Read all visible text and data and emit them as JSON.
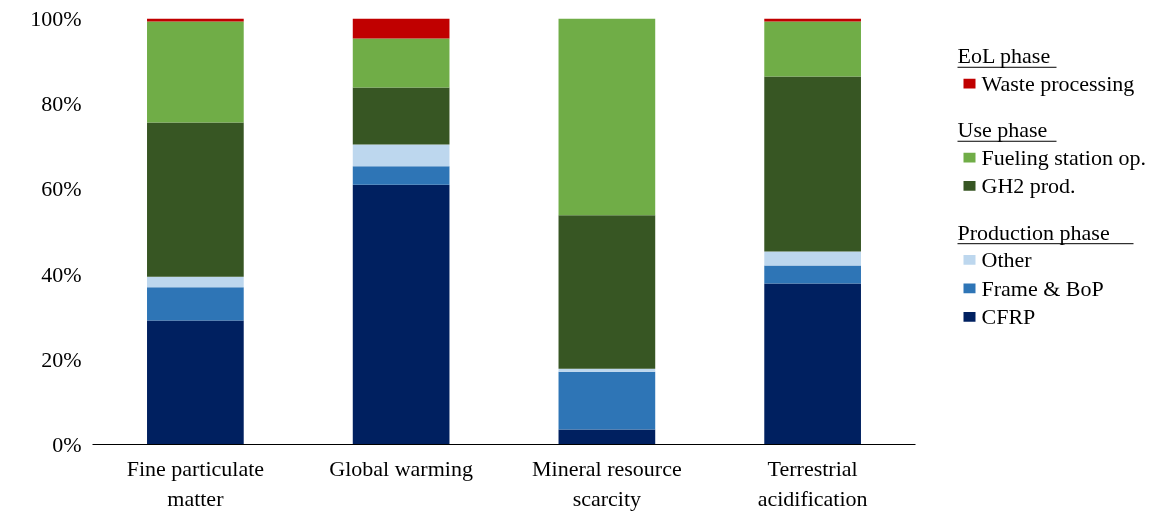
{
  "chart_data": {
    "type": "bar",
    "stacked": true,
    "categories": [
      "Fine particulate\nmatter",
      "Global warming",
      "Mineral resource\nscarcity",
      "Terrestrial\nacidification"
    ],
    "series": [
      {
        "name": "CFRP",
        "color": "#002060",
        "values": [
          29.1,
          61.0,
          3.5,
          37.8
        ]
      },
      {
        "name": "Frame & BoP",
        "color": "#2e75b6",
        "values": [
          7.8,
          4.3,
          13.6,
          4.2
        ]
      },
      {
        "name": "Other",
        "color": "#bdd7ee",
        "values": [
          2.5,
          5.1,
          0.7,
          3.3
        ]
      },
      {
        "name": "GH2 prod.",
        "color": "#375623",
        "values": [
          36.2,
          13.4,
          36.0,
          41.1
        ]
      },
      {
        "name": "Fueling station op.",
        "color": "#70ad47",
        "values": [
          23.7,
          11.5,
          46.2,
          12.9
        ]
      },
      {
        "name": "Waste processing",
        "color": "#c00000",
        "values": [
          0.7,
          4.7,
          0,
          0.7
        ]
      }
    ],
    "ylim": [
      0,
      100
    ],
    "yticks": [
      {
        "value": 0,
        "label": "0%"
      },
      {
        "value": 20,
        "label": "20%"
      },
      {
        "value": 40,
        "label": "40%"
      },
      {
        "value": 60,
        "label": "60%"
      },
      {
        "value": 80,
        "label": "80%"
      },
      {
        "value": 100,
        "label": "100%"
      }
    ],
    "grid": false,
    "legend": "right",
    "annotations": [
      "EoL phase",
      "Use phase",
      "Production phase"
    ]
  }
}
